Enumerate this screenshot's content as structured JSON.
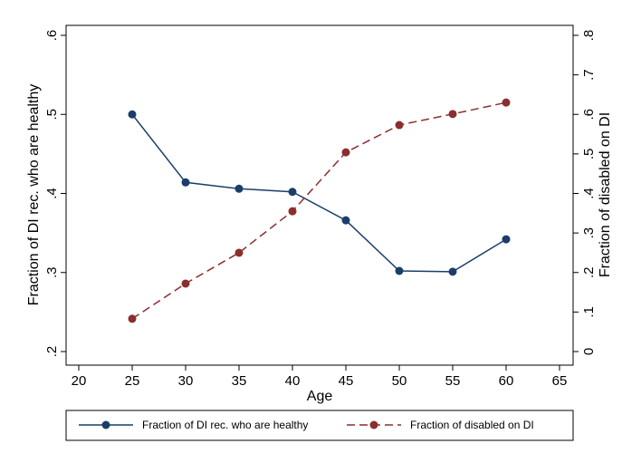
{
  "chart_data": {
    "type": "line",
    "xlabel": "Age",
    "ylabel_left": "Fraction of DI rec. who are healthy",
    "ylabel_right": "Fraction of disabled on DI",
    "x_ticks": [
      "20",
      "25",
      "30",
      "35",
      "40",
      "45",
      "50",
      "55",
      "60",
      "65"
    ],
    "y_left_ticks": [
      ".2",
      ".3",
      ".4",
      ".5",
      ".6"
    ],
    "y_right_ticks": [
      "0",
      ".1",
      ".2",
      ".3",
      ".4",
      ".5",
      ".6",
      ".7",
      ".8"
    ],
    "xlim": [
      20,
      65
    ],
    "ylim_left": [
      0.2,
      0.6
    ],
    "ylim_right": [
      0,
      0.8
    ],
    "grid": false,
    "legend_position": "bottom",
    "series": [
      {
        "name": "Fraction of DI rec. who are healthy",
        "axis": "left",
        "style": "solid",
        "color": "#1a3e68",
        "x": [
          25,
          30,
          35,
          40,
          45,
          50,
          55,
          60
        ],
        "values": [
          0.5,
          0.414,
          0.406,
          0.402,
          0.366,
          0.302,
          0.301,
          0.342
        ]
      },
      {
        "name": "Fraction of disabled on DI",
        "axis": "right",
        "style": "dashed",
        "color": "#8b2e2e",
        "x": [
          25,
          30,
          35,
          40,
          45,
          50,
          55,
          60
        ],
        "values": [
          0.083,
          0.172,
          0.25,
          0.355,
          0.504,
          0.573,
          0.601,
          0.63
        ]
      }
    ]
  }
}
